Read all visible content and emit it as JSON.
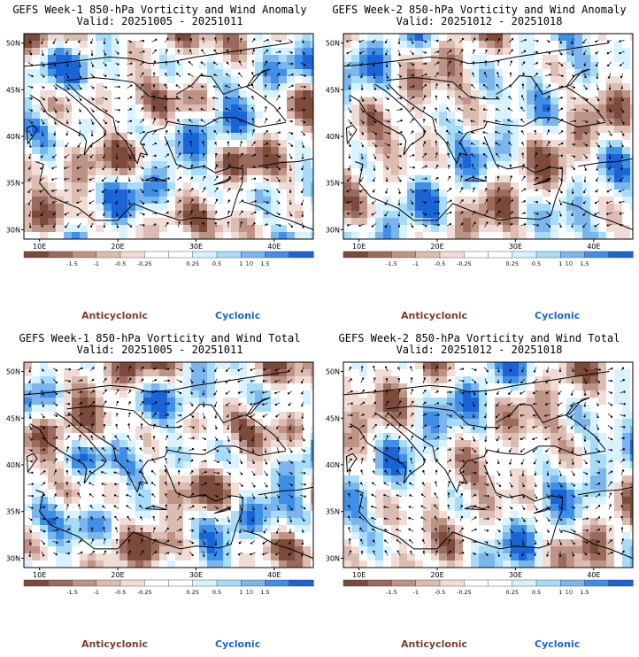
{
  "charts": [
    {
      "title": "GEFS Week-1 850-hPa Vorticity and Wind Anomaly",
      "valid": "Valid: 20251005 - 20251011"
    },
    {
      "title": "GEFS Week-2 850-hPa Vorticity and Wind Anomaly",
      "valid": "Valid: 20251012 - 20251018"
    },
    {
      "title": "GEFS Week-1 850-hPa Vorticity and Wind Total",
      "valid": "Valid: 20251005 - 20251011"
    },
    {
      "title": "GEFS Week-2 850-hPa Vorticity and Wind Total",
      "valid": "Valid: 20251012 - 20251018"
    }
  ],
  "chart_data": {
    "type": "heatmap",
    "xlim": [
      8,
      45
    ],
    "ylim": [
      29,
      51
    ],
    "xticks": [
      "10E",
      "20E",
      "30E",
      "40E"
    ],
    "xtick_values": [
      10,
      20,
      30,
      40
    ],
    "yticks": [
      "30N",
      "35N",
      "40N",
      "45N",
      "50N"
    ],
    "ytick_values": [
      30,
      35,
      40,
      45,
      50
    ],
    "colorbar": {
      "tick_labels": [
        "-1.5",
        "-1",
        "-0.5",
        "-0.25",
        "0.25",
        "0.5",
        "1",
        "1.5"
      ],
      "scale_label": "10",
      "colors": [
        "#7a4a3a",
        "#9c6a5c",
        "#bd9385",
        "#dcbcb1",
        "#f0dcd5",
        "#ffffff",
        "#ffffff",
        "#d8f2ff",
        "#a6dcf7",
        "#7cb5ee",
        "#3f8ee8",
        "#1a64d6"
      ]
    },
    "legend": {
      "negative": "Anticyclonic",
      "positive": "Cyclonic"
    }
  }
}
